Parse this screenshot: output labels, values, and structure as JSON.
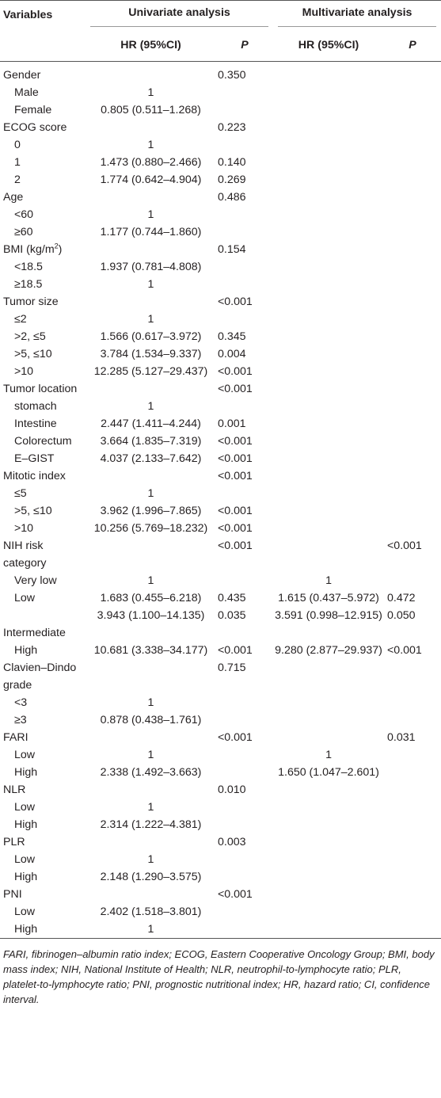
{
  "header": {
    "variables": "Variables",
    "univariate": "Univariate analysis",
    "multivariate": "Multivariate analysis",
    "hr": "HR (95%CI)",
    "p": "P"
  },
  "rows": [
    {
      "label": "Gender",
      "sub": false,
      "hr": "",
      "p": "0.350",
      "mhr": "",
      "mp": ""
    },
    {
      "label": "Male",
      "sub": true,
      "hr": "1",
      "p": "",
      "mhr": "",
      "mp": ""
    },
    {
      "label": "Female",
      "sub": true,
      "hr": "0.805 (0.511–1.268)",
      "p": "",
      "mhr": "",
      "mp": ""
    },
    {
      "label": "ECOG score",
      "sub": false,
      "hr": "",
      "p": "0.223",
      "mhr": "",
      "mp": ""
    },
    {
      "label": "0",
      "sub": true,
      "hr": "1",
      "p": "",
      "mhr": "",
      "mp": ""
    },
    {
      "label": "1",
      "sub": true,
      "hr": "1.473 (0.880–2.466)",
      "p": "0.140",
      "mhr": "",
      "mp": ""
    },
    {
      "label": "2",
      "sub": true,
      "hr": "1.774 (0.642–4.904)",
      "p": "0.269",
      "mhr": "",
      "mp": ""
    },
    {
      "label": "Age",
      "sub": false,
      "hr": "",
      "p": "0.486",
      "mhr": "",
      "mp": ""
    },
    {
      "label": "<60",
      "sub": true,
      "hr": "1",
      "p": "",
      "mhr": "",
      "mp": ""
    },
    {
      "label": "≥60",
      "sub": true,
      "hr": "1.177 (0.744–1.860)",
      "p": "",
      "mhr": "",
      "mp": ""
    },
    {
      "label": "BMI (kg/m",
      "sup": "2",
      "labelEnd": ")",
      "sub": false,
      "hr": "",
      "p": "0.154",
      "mhr": "",
      "mp": ""
    },
    {
      "label": "<18.5",
      "sub": true,
      "hr": "1.937 (0.781–4.808)",
      "p": "",
      "mhr": "",
      "mp": ""
    },
    {
      "label": "≥18.5",
      "sub": true,
      "hr": "1",
      "p": "",
      "mhr": "",
      "mp": ""
    },
    {
      "label": "Tumor size",
      "sub": false,
      "hr": "",
      "p": "<0.001",
      "mhr": "",
      "mp": ""
    },
    {
      "label": "≤2",
      "sub": true,
      "hr": "1",
      "p": "",
      "mhr": "",
      "mp": ""
    },
    {
      "label": ">2, ≤5",
      "sub": true,
      "hr": "1.566 (0.617–3.972)",
      "p": "0.345",
      "mhr": "",
      "mp": ""
    },
    {
      "label": ">5, ≤10",
      "sub": true,
      "hr": "3.784 (1.534–9.337)",
      "p": "0.004",
      "mhr": "",
      "mp": ""
    },
    {
      "label": ">10",
      "sub": true,
      "hr": "12.285 (5.127–29.437)",
      "p": "<0.001",
      "mhr": "",
      "mp": ""
    },
    {
      "label": "Tumor location",
      "sub": false,
      "hr": "",
      "p": "<0.001",
      "mhr": "",
      "mp": ""
    },
    {
      "label": "stomach",
      "sub": true,
      "hr": "1",
      "p": "",
      "mhr": "",
      "mp": ""
    },
    {
      "label": "Intestine",
      "sub": true,
      "hr": "2.447 (1.411–4.244)",
      "p": "0.001",
      "mhr": "",
      "mp": ""
    },
    {
      "label": "Colorectum",
      "sub": true,
      "hr": "3.664 (1.835–7.319)",
      "p": "<0.001",
      "mhr": "",
      "mp": ""
    },
    {
      "label": "E–GIST",
      "sub": true,
      "hr": "4.037 (2.133–7.642)",
      "p": "<0.001",
      "mhr": "",
      "mp": ""
    },
    {
      "label": "Mitotic index",
      "sub": false,
      "hr": "",
      "p": "<0.001",
      "mhr": "",
      "mp": ""
    },
    {
      "label": "≤5",
      "sub": true,
      "hr": "1",
      "p": "",
      "mhr": "",
      "mp": ""
    },
    {
      "label": ">5, ≤10",
      "sub": true,
      "hr": "3.962 (1.996–7.865)",
      "p": "<0.001",
      "mhr": "",
      "mp": ""
    },
    {
      "label": ">10",
      "sub": true,
      "hr": "10.256 (5.769–18.232)",
      "p": "<0.001",
      "mhr": "",
      "mp": ""
    },
    {
      "label": "NIH risk category",
      "sub": false,
      "hr": "",
      "p": "<0.001",
      "mhr": "",
      "mp": "<0.001"
    },
    {
      "label": "Very low",
      "sub": true,
      "hr": "1",
      "p": "",
      "mhr": "1",
      "mp": ""
    },
    {
      "label": "Low",
      "sub": true,
      "hr": "1.683 (0.455–6.218)",
      "p": "0.435",
      "mhr": "1.615 (0.437–5.972)",
      "mp": "0.472"
    },
    {
      "label": "",
      "sub": true,
      "hr": "3.943 (1.100–14.135)",
      "p": "0.035",
      "mhr": "3.591 (0.998–12.915)",
      "mp": "0.050"
    },
    {
      "label": "Intermediate",
      "sub": false,
      "hr": "",
      "p": "",
      "mhr": "",
      "mp": ""
    },
    {
      "label": "High",
      "sub": true,
      "hr": "10.681 (3.338–34.177)",
      "p": "<0.001",
      "mhr": "9.280 (2.877–29.937)",
      "mp": "<0.001"
    },
    {
      "label": "Clavien–Dindo grade",
      "sub": false,
      "hr": "",
      "p": "0.715",
      "mhr": "",
      "mp": ""
    },
    {
      "label": "<3",
      "sub": true,
      "hr": "1",
      "p": "",
      "mhr": "",
      "mp": ""
    },
    {
      "label": "≥3",
      "sub": true,
      "hr": "0.878 (0.438–1.761)",
      "p": "",
      "mhr": "",
      "mp": ""
    },
    {
      "label": "FARI",
      "sub": false,
      "hr": "",
      "p": "<0.001",
      "mhr": "",
      "mp": "0.031"
    },
    {
      "label": "Low",
      "sub": true,
      "hr": "1",
      "p": "",
      "mhr": "1",
      "mp": ""
    },
    {
      "label": "High",
      "sub": true,
      "hr": "2.338 (1.492–3.663)",
      "p": "",
      "mhr": "1.650 (1.047–2.601)",
      "mp": ""
    },
    {
      "label": "NLR",
      "sub": false,
      "hr": "",
      "p": "0.010",
      "mhr": "",
      "mp": ""
    },
    {
      "label": "Low",
      "sub": true,
      "hr": "1",
      "p": "",
      "mhr": "",
      "mp": ""
    },
    {
      "label": "High",
      "sub": true,
      "hr": "2.314 (1.222–4.381)",
      "p": "",
      "mhr": "",
      "mp": ""
    },
    {
      "label": "PLR",
      "sub": false,
      "hr": "",
      "p": "0.003",
      "mhr": "",
      "mp": ""
    },
    {
      "label": "Low",
      "sub": true,
      "hr": "1",
      "p": "",
      "mhr": "",
      "mp": ""
    },
    {
      "label": "High",
      "sub": true,
      "hr": "2.148 (1.290–3.575)",
      "p": "",
      "mhr": "",
      "mp": ""
    },
    {
      "label": "PNI",
      "sub": false,
      "hr": "",
      "p": "<0.001",
      "mhr": "",
      "mp": ""
    },
    {
      "label": "Low",
      "sub": true,
      "hr": "2.402 (1.518–3.801)",
      "p": "",
      "mhr": "",
      "mp": ""
    },
    {
      "label": "High",
      "sub": true,
      "hr": "1",
      "p": "",
      "mhr": "",
      "mp": ""
    }
  ],
  "footnote": "FARI, fibrinogen–albumin ratio index; ECOG, Eastern Cooperative Oncology Group; BMI, body mass index; NIH, National Institute of Health; NLR, neutrophil-to-lymphocyte ratio; PLR, platelet-to-lymphocyte ratio; PNI, prognostic nutritional index; HR, hazard ratio; CI, confidence interval."
}
